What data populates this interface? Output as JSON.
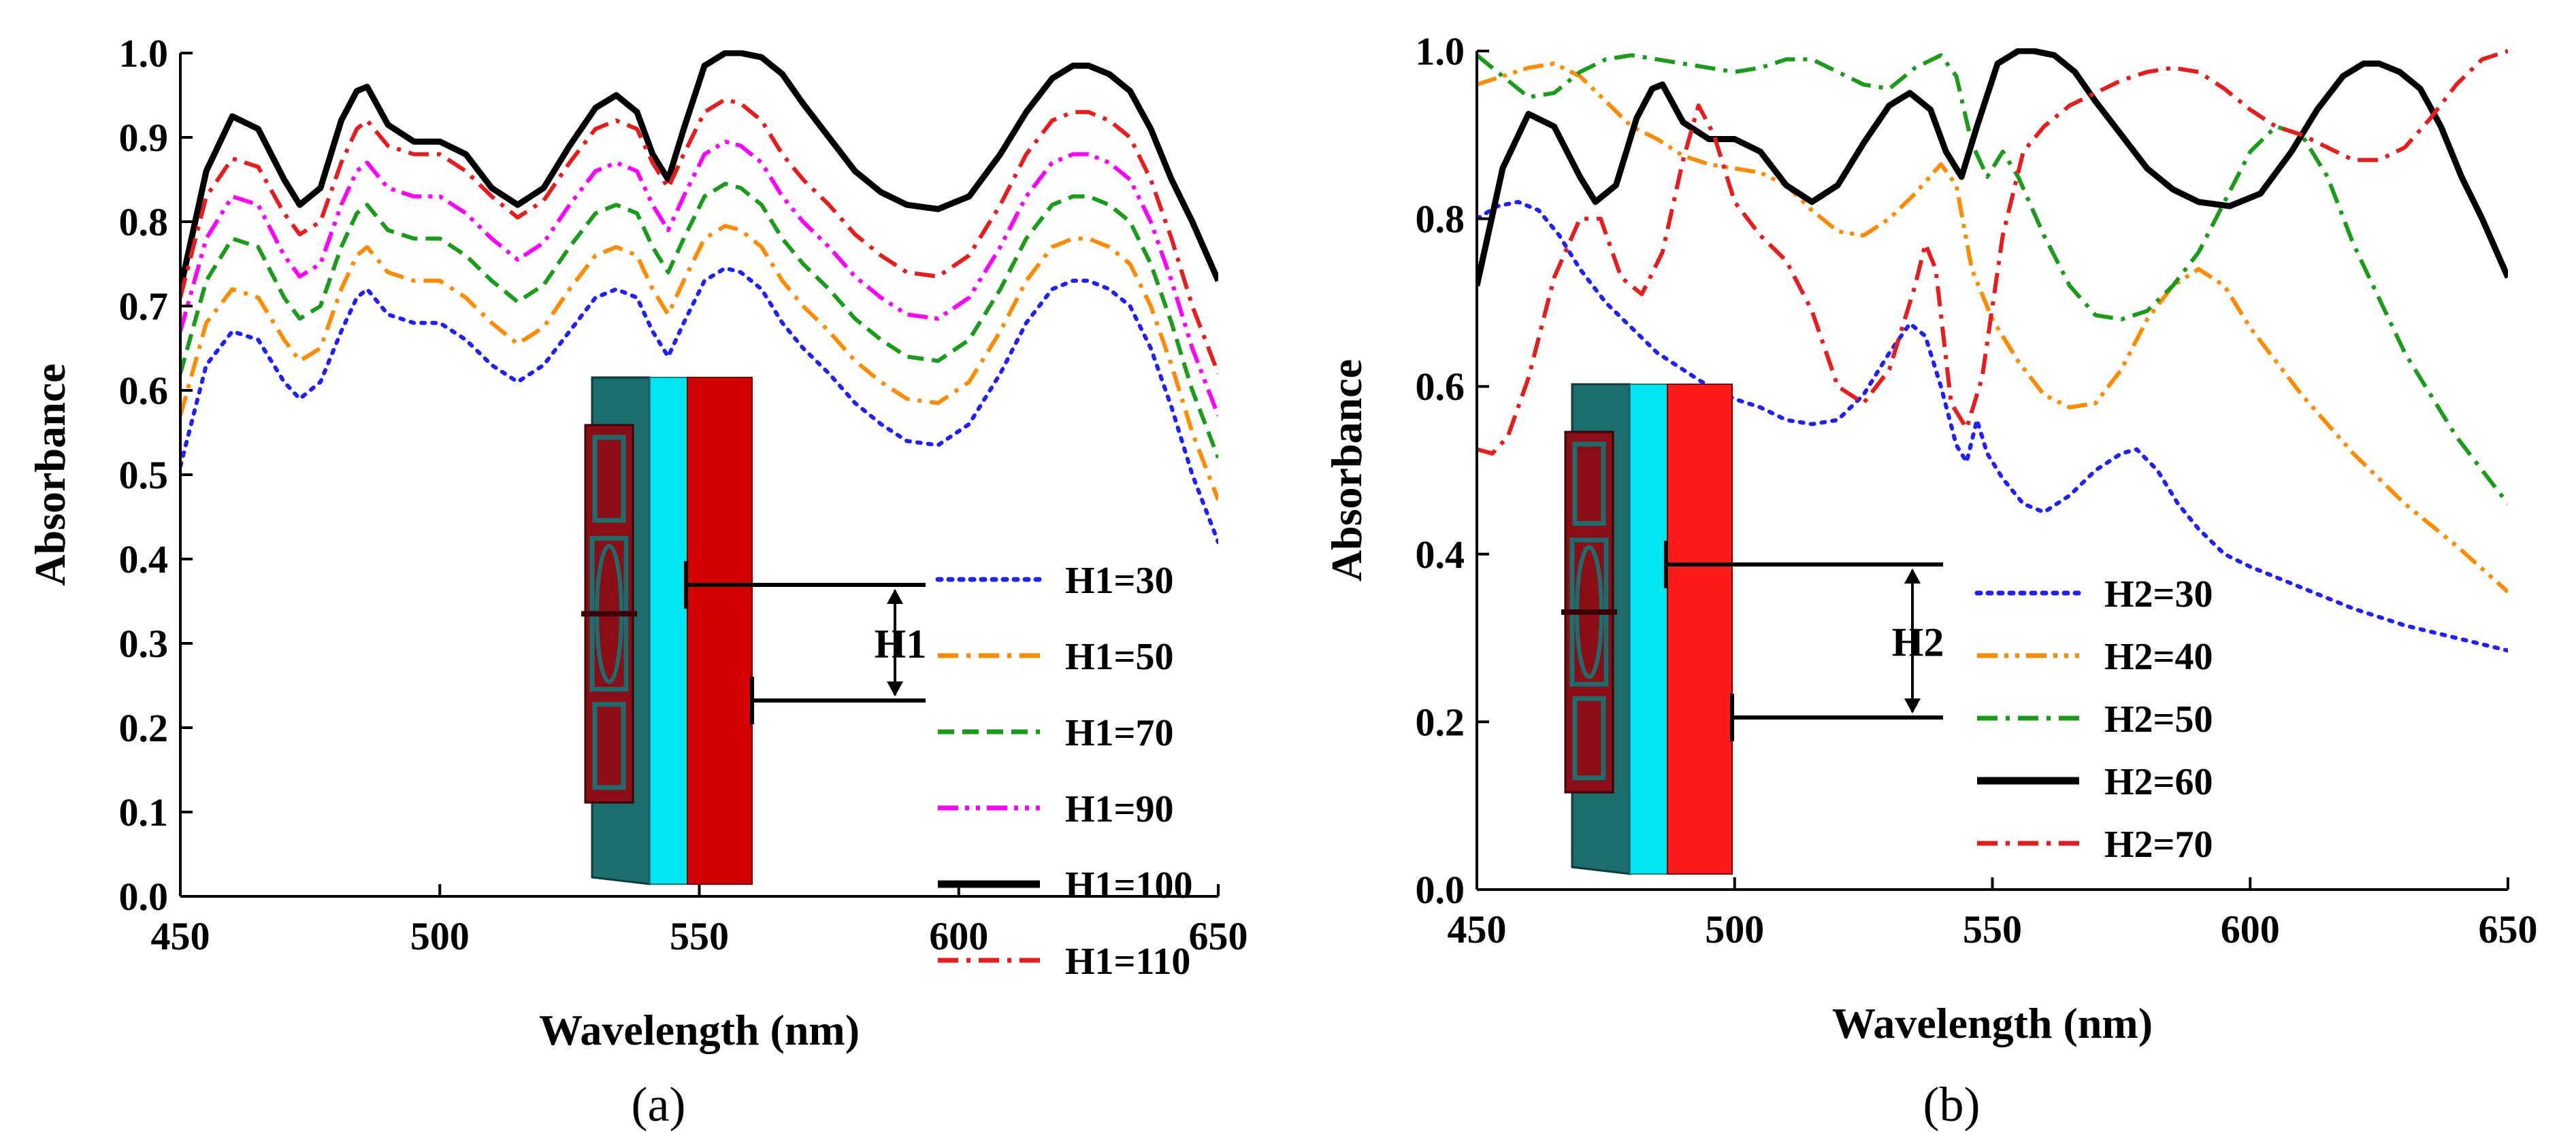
{
  "chart_data": [
    {
      "type": "line",
      "panel_label": "(a)",
      "xlabel": "Wavelength (nm)",
      "ylabel": "Absorbance",
      "xlim": [
        450,
        650
      ],
      "ylim": [
        0.0,
        1.0
      ],
      "xticks": [
        450,
        500,
        550,
        600,
        650
      ],
      "yticks": [
        0.0,
        0.1,
        0.2,
        0.3,
        0.4,
        0.5,
        0.6,
        0.7,
        0.8,
        0.9,
        1.0
      ],
      "x": [
        450,
        455,
        460,
        465,
        470,
        473,
        477,
        481,
        484,
        486,
        490,
        495,
        500,
        505,
        510,
        515,
        520,
        525,
        530,
        534,
        538,
        541,
        544,
        547,
        551,
        555,
        558,
        562,
        566,
        570,
        575,
        580,
        585,
        590,
        596,
        602,
        608,
        613,
        618,
        622,
        625,
        629,
        633,
        637,
        641,
        645,
        650
      ],
      "series": [
        {
          "name": "H1=30",
          "color": "#1f1fff",
          "dash": "dot",
          "values": [
            0.51,
            0.63,
            0.67,
            0.66,
            0.61,
            0.59,
            0.61,
            0.67,
            0.71,
            0.72,
            0.69,
            0.68,
            0.68,
            0.66,
            0.63,
            0.61,
            0.63,
            0.67,
            0.71,
            0.72,
            0.71,
            0.67,
            0.64,
            0.68,
            0.73,
            0.745,
            0.74,
            0.72,
            0.68,
            0.65,
            0.62,
            0.585,
            0.56,
            0.54,
            0.535,
            0.56,
            0.62,
            0.68,
            0.72,
            0.73,
            0.73,
            0.72,
            0.7,
            0.65,
            0.58,
            0.5,
            0.42
          ]
        },
        {
          "name": "H1=50",
          "color": "#ff8c00",
          "dash": "dashdot",
          "values": [
            0.57,
            0.68,
            0.72,
            0.71,
            0.66,
            0.635,
            0.65,
            0.72,
            0.76,
            0.77,
            0.74,
            0.73,
            0.73,
            0.71,
            0.68,
            0.655,
            0.675,
            0.72,
            0.76,
            0.77,
            0.76,
            0.72,
            0.69,
            0.73,
            0.78,
            0.795,
            0.79,
            0.77,
            0.73,
            0.7,
            0.67,
            0.635,
            0.61,
            0.59,
            0.585,
            0.61,
            0.67,
            0.73,
            0.77,
            0.78,
            0.78,
            0.77,
            0.75,
            0.7,
            0.63,
            0.55,
            0.47
          ]
        },
        {
          "name": "H1=70",
          "color": "#1a9c1a",
          "dash": "dash",
          "values": [
            0.62,
            0.73,
            0.78,
            0.77,
            0.71,
            0.685,
            0.7,
            0.77,
            0.81,
            0.82,
            0.79,
            0.78,
            0.78,
            0.76,
            0.73,
            0.705,
            0.725,
            0.77,
            0.81,
            0.82,
            0.81,
            0.77,
            0.74,
            0.78,
            0.83,
            0.845,
            0.84,
            0.82,
            0.78,
            0.75,
            0.72,
            0.685,
            0.66,
            0.64,
            0.635,
            0.66,
            0.72,
            0.78,
            0.82,
            0.83,
            0.83,
            0.82,
            0.8,
            0.75,
            0.68,
            0.6,
            0.52
          ]
        },
        {
          "name": "H1=90",
          "color": "#ff00ff",
          "dash": "dashdotdot",
          "values": [
            0.67,
            0.78,
            0.83,
            0.82,
            0.76,
            0.735,
            0.75,
            0.82,
            0.86,
            0.87,
            0.84,
            0.83,
            0.83,
            0.81,
            0.78,
            0.755,
            0.775,
            0.82,
            0.86,
            0.87,
            0.86,
            0.82,
            0.79,
            0.83,
            0.88,
            0.895,
            0.89,
            0.87,
            0.83,
            0.8,
            0.77,
            0.735,
            0.71,
            0.69,
            0.685,
            0.71,
            0.77,
            0.83,
            0.87,
            0.88,
            0.88,
            0.87,
            0.85,
            0.8,
            0.73,
            0.65,
            0.57
          ]
        },
        {
          "name": "H1=100",
          "color": "#000000",
          "dash": "solid",
          "values": [
            0.72,
            0.86,
            0.925,
            0.91,
            0.85,
            0.82,
            0.84,
            0.92,
            0.955,
            0.96,
            0.915,
            0.895,
            0.895,
            0.88,
            0.84,
            0.82,
            0.84,
            0.89,
            0.935,
            0.95,
            0.93,
            0.88,
            0.85,
            0.91,
            0.985,
            1.0,
            1.0,
            0.995,
            0.975,
            0.94,
            0.9,
            0.86,
            0.835,
            0.82,
            0.815,
            0.83,
            0.88,
            0.93,
            0.97,
            0.985,
            0.985,
            0.975,
            0.955,
            0.91,
            0.85,
            0.8,
            0.73
          ]
        },
        {
          "name": "H1=110",
          "color": "#e81c1c",
          "dash": "dashdot",
          "values": [
            0.71,
            0.83,
            0.875,
            0.865,
            0.81,
            0.785,
            0.8,
            0.87,
            0.91,
            0.92,
            0.89,
            0.88,
            0.88,
            0.86,
            0.83,
            0.805,
            0.825,
            0.87,
            0.91,
            0.92,
            0.91,
            0.87,
            0.84,
            0.88,
            0.93,
            0.945,
            0.94,
            0.92,
            0.88,
            0.85,
            0.82,
            0.785,
            0.76,
            0.74,
            0.735,
            0.76,
            0.82,
            0.88,
            0.92,
            0.93,
            0.93,
            0.92,
            0.9,
            0.85,
            0.78,
            0.7,
            0.62
          ]
        }
      ],
      "inset": {
        "dimension_label": "H1"
      }
    },
    {
      "type": "line",
      "panel_label": "(b)",
      "xlabel": "Wavelength (nm)",
      "ylabel": "Absorbance",
      "xlim": [
        450,
        650
      ],
      "ylim": [
        0.0,
        1.0
      ],
      "xticks": [
        450,
        500,
        550,
        600,
        650
      ],
      "yticks": [
        0.0,
        0.2,
        0.4,
        0.6,
        0.8,
        1.0
      ],
      "series": [
        {
          "name": "H2=30",
          "color": "#1f1fff",
          "dash": "dot",
          "x": [
            450,
            454,
            458,
            462,
            466,
            470,
            475,
            480,
            485,
            490,
            495,
            500,
            505,
            510,
            515,
            520,
            525,
            530,
            534,
            537,
            540,
            543,
            545,
            547,
            549,
            552,
            556,
            560,
            565,
            570,
            575,
            578,
            582,
            586,
            590,
            595,
            600,
            610,
            620,
            630,
            640,
            650
          ],
          "values": [
            0.8,
            0.815,
            0.82,
            0.81,
            0.78,
            0.74,
            0.7,
            0.67,
            0.64,
            0.62,
            0.6,
            0.585,
            0.575,
            0.56,
            0.555,
            0.56,
            0.59,
            0.64,
            0.675,
            0.66,
            0.6,
            0.53,
            0.51,
            0.56,
            0.52,
            0.49,
            0.46,
            0.45,
            0.47,
            0.5,
            0.52,
            0.525,
            0.5,
            0.46,
            0.43,
            0.4,
            0.385,
            0.36,
            0.335,
            0.315,
            0.3,
            0.285
          ]
        },
        {
          "name": "H2=40",
          "color": "#ff8c00",
          "dash": "dashdotdot",
          "x": [
            450,
            455,
            460,
            465,
            470,
            475,
            480,
            485,
            490,
            495,
            500,
            505,
            510,
            515,
            520,
            525,
            530,
            535,
            540,
            543,
            546,
            550,
            555,
            560,
            565,
            570,
            575,
            580,
            585,
            590,
            595,
            600,
            610,
            620,
            630,
            640,
            650
          ],
          "values": [
            0.96,
            0.97,
            0.98,
            0.985,
            0.97,
            0.94,
            0.91,
            0.895,
            0.875,
            0.865,
            0.86,
            0.855,
            0.84,
            0.81,
            0.785,
            0.78,
            0.8,
            0.83,
            0.865,
            0.84,
            0.74,
            0.68,
            0.63,
            0.59,
            0.575,
            0.58,
            0.62,
            0.68,
            0.72,
            0.74,
            0.72,
            0.67,
            0.59,
            0.52,
            0.46,
            0.41,
            0.355
          ]
        },
        {
          "name": "H2=50",
          "color": "#1a9c1a",
          "dash": "dashdot",
          "x": [
            450,
            455,
            460,
            465,
            470,
            475,
            480,
            485,
            490,
            495,
            500,
            505,
            510,
            515,
            520,
            525,
            530,
            535,
            540,
            543,
            546,
            549,
            552,
            555,
            560,
            565,
            570,
            575,
            580,
            585,
            590,
            595,
            600,
            605,
            610,
            615,
            620,
            630,
            640,
            650
          ],
          "values": [
            0.995,
            0.97,
            0.945,
            0.95,
            0.975,
            0.99,
            0.995,
            0.99,
            0.985,
            0.98,
            0.975,
            0.98,
            0.99,
            0.99,
            0.975,
            0.96,
            0.955,
            0.98,
            0.995,
            0.97,
            0.89,
            0.85,
            0.88,
            0.85,
            0.78,
            0.72,
            0.685,
            0.68,
            0.69,
            0.72,
            0.76,
            0.82,
            0.88,
            0.91,
            0.9,
            0.85,
            0.77,
            0.64,
            0.54,
            0.46
          ]
        },
        {
          "name": "H2=60",
          "color": "#000000",
          "dash": "solid",
          "x": [
            450,
            455,
            460,
            465,
            470,
            473,
            477,
            481,
            484,
            486,
            490,
            495,
            500,
            505,
            510,
            515,
            520,
            525,
            530,
            534,
            538,
            541,
            544,
            547,
            551,
            555,
            558,
            562,
            566,
            570,
            575,
            580,
            585,
            590,
            596,
            602,
            608,
            613,
            618,
            622,
            625,
            629,
            633,
            637,
            641,
            645,
            650
          ],
          "values": [
            0.72,
            0.86,
            0.925,
            0.91,
            0.85,
            0.82,
            0.84,
            0.92,
            0.955,
            0.96,
            0.915,
            0.895,
            0.895,
            0.88,
            0.84,
            0.82,
            0.84,
            0.89,
            0.935,
            0.95,
            0.93,
            0.88,
            0.85,
            0.91,
            0.985,
            1.0,
            1.0,
            0.995,
            0.975,
            0.94,
            0.9,
            0.86,
            0.835,
            0.82,
            0.815,
            0.83,
            0.88,
            0.93,
            0.97,
            0.985,
            0.985,
            0.975,
            0.955,
            0.91,
            0.85,
            0.8,
            0.73
          ]
        },
        {
          "name": "H2=70",
          "color": "#e81c1c",
          "dash": "dashdot",
          "x": [
            450,
            453,
            456,
            460,
            465,
            470,
            474,
            478,
            482,
            486,
            490,
            493,
            496,
            500,
            505,
            510,
            515,
            520,
            525,
            530,
            535,
            537,
            539,
            542,
            545,
            548,
            552,
            556,
            560,
            565,
            570,
            575,
            580,
            585,
            590,
            595,
            600,
            605,
            610,
            615,
            620,
            625,
            630,
            635,
            640,
            645,
            650
          ],
          "values": [
            0.525,
            0.52,
            0.54,
            0.61,
            0.73,
            0.8,
            0.8,
            0.73,
            0.71,
            0.76,
            0.87,
            0.935,
            0.9,
            0.82,
            0.78,
            0.75,
            0.69,
            0.6,
            0.58,
            0.62,
            0.72,
            0.77,
            0.74,
            0.58,
            0.55,
            0.61,
            0.78,
            0.88,
            0.91,
            0.935,
            0.95,
            0.965,
            0.975,
            0.98,
            0.975,
            0.955,
            0.93,
            0.91,
            0.9,
            0.885,
            0.87,
            0.87,
            0.885,
            0.92,
            0.96,
            0.99,
            1.0
          ]
        }
      ],
      "inset": {
        "dimension_label": "H2"
      }
    }
  ]
}
